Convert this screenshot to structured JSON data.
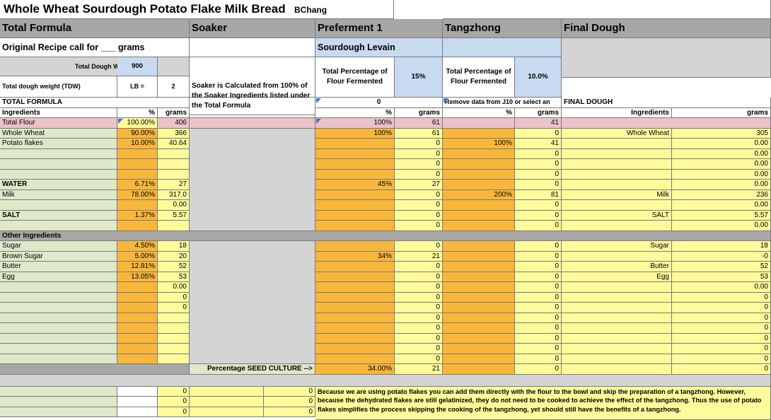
{
  "title": "Whole Wheat Sourdough Potato Flake Milk Bread",
  "author": "BChang",
  "sections": {
    "total_formula": "Total Formula",
    "soaker": "Soaker",
    "preferment": "Preferment 1",
    "tangzhong": "Tangzhong",
    "final_dough": "Final Dough"
  },
  "original_recipe": "Original Recipe call for ___ grams",
  "sourdough_levain": "Sourdough Levain",
  "tdw_label": "Total Dough Weight (TDW)",
  "tdw_value": "900",
  "tdw2_label": "Total dough weight (TDW)",
  "lb_label": "LB =",
  "lb_value": "2",
  "soaker_note": "Soaker is Calculated from 100% of the Soaker Ingredients listed under the Total Formula",
  "pref_pct_label": "Total Percentage of Flour Fermented",
  "pref_pct_value": "15%",
  "tang_pct_label": "Total Percentage of Flour Fermented",
  "tang_pct_value": "10.0%",
  "total_formula_caps": "TOTAL FORMULA",
  "pref_zero": "0",
  "tang_remove_note": "Remove data from J10 or select an",
  "final_dough_caps": "FINAL DOUGH",
  "col_ingredients": "Ingredients",
  "col_pct": "%",
  "col_grams": "grams",
  "total_flour": {
    "label": "Total Flour",
    "pct": "100.00%",
    "grams": "406",
    "pref_pct": "100%",
    "pref_grams": "61",
    "tang_grams": "41"
  },
  "rows": [
    {
      "name": "Whole Wheat",
      "pct": "90.00%",
      "g": "366",
      "ppct": "100%",
      "pg": "61",
      "tpct": "",
      "tg": "0",
      "fname": "Whole Wheat",
      "fg": "305"
    },
    {
      "name": "Potato flakes",
      "pct": "10.00%",
      "g": "40.64",
      "ppct": "",
      "pg": "0",
      "tpct": "100%",
      "tg": "41",
      "fname": "",
      "fg": "0.00"
    },
    {
      "name": "",
      "pct": "",
      "g": "",
      "ppct": "",
      "pg": "0",
      "tpct": "",
      "tg": "0",
      "fname": "",
      "fg": "0.00"
    },
    {
      "name": "",
      "pct": "",
      "g": "",
      "ppct": "",
      "pg": "0",
      "tpct": "",
      "tg": "0",
      "fname": "",
      "fg": "0.00"
    },
    {
      "name": "",
      "pct": "",
      "g": "",
      "ppct": "",
      "pg": "0",
      "tpct": "",
      "tg": "0",
      "fname": "",
      "fg": "0.00"
    },
    {
      "name": "WATER",
      "pct": "6.71%",
      "g": "27",
      "ppct": "45%",
      "pg": "27",
      "tpct": "",
      "tg": "0",
      "fname": "",
      "fg": "0.00",
      "bold": true
    },
    {
      "name": "Milk",
      "pct": "78.00%",
      "g": "317.0",
      "ppct": "",
      "pg": "0",
      "tpct": "200%",
      "tg": "81",
      "fname": "Milk",
      "fg": "236"
    },
    {
      "name": "",
      "pct": "",
      "g": "0.00",
      "ppct": "",
      "pg": "0",
      "tpct": "",
      "tg": "0",
      "fname": "",
      "fg": "0.00"
    },
    {
      "name": "SALT",
      "pct": "1.37%",
      "g": "5.57",
      "ppct": "",
      "pg": "0",
      "tpct": "",
      "tg": "0",
      "fname": "SALT",
      "fg": "5.57",
      "bold": true
    },
    {
      "name": "",
      "pct": "",
      "g": "",
      "ppct": "",
      "pg": "0",
      "tpct": "",
      "tg": "0",
      "fname": "",
      "fg": "0.00"
    }
  ],
  "other_ingredients": "Other Ingredients",
  "rows2": [
    {
      "name": "Sugar",
      "pct": "4.50%",
      "g": "18",
      "ppct": "",
      "pg": "0",
      "tg": "0",
      "fname": "Sugar",
      "fg": "18"
    },
    {
      "name": "Brown Sugar",
      "pct": "5.00%",
      "g": "20",
      "ppct": "34%",
      "pg": "21",
      "tg": "0",
      "fname": "",
      "fg": "-0"
    },
    {
      "name": "Butter",
      "pct": "12.81%",
      "g": "52",
      "ppct": "",
      "pg": "0",
      "tg": "0",
      "fname": "Butter",
      "fg": "52"
    },
    {
      "name": "Egg",
      "pct": "13.05%",
      "g": "53",
      "ppct": "",
      "pg": "0",
      "tg": "0",
      "fname": "Egg",
      "fg": "53"
    },
    {
      "name": "",
      "pct": "",
      "g": "0.00",
      "ppct": "",
      "pg": "0",
      "tg": "0",
      "fname": "",
      "fg": "0.00"
    },
    {
      "name": "",
      "pct": "",
      "g": "0",
      "ppct": "",
      "pg": "0",
      "tg": "0",
      "fname": "",
      "fg": "0"
    },
    {
      "name": "",
      "pct": "",
      "g": "0",
      "ppct": "",
      "pg": "0",
      "tg": "0",
      "fname": "",
      "fg": "0"
    },
    {
      "name": "",
      "pct": "",
      "g": "",
      "ppct": "",
      "pg": "0",
      "tg": "0",
      "fname": "",
      "fg": "0"
    },
    {
      "name": "",
      "pct": "",
      "g": "",
      "ppct": "",
      "pg": "0",
      "tg": "0",
      "fname": "",
      "fg": "0"
    },
    {
      "name": "",
      "pct": "",
      "g": "",
      "ppct": "",
      "pg": "0",
      "tg": "0",
      "fname": "",
      "fg": "0"
    },
    {
      "name": "",
      "pct": "",
      "g": "",
      "ppct": "",
      "pg": "0",
      "tg": "0",
      "fname": "",
      "fg": "0"
    },
    {
      "name": "",
      "pct": "",
      "g": "",
      "ppct": "",
      "pg": "0",
      "tg": "0",
      "fname": "",
      "fg": "0"
    }
  ],
  "seed_label": "Percentage SEED CULTURE  -->",
  "seed_pct": "34.00%",
  "seed_g": "21",
  "seed_tg": "0",
  "seed_fg": "0",
  "bottom_vals": [
    "0",
    "0",
    "0"
  ],
  "note": "Because we are using potato flakes you can add them directly with the flour to the bowl and skip the preparation of a tangzhong.  However, because the dehydrated flakes are still gelatinized, they do not need to be cooked to achieve the effect of the tangzhong. Thus the use of potato flakes simplifies the process skipping the cooking of the tangzhong, yet should still have the benefits of a tangzhong."
}
